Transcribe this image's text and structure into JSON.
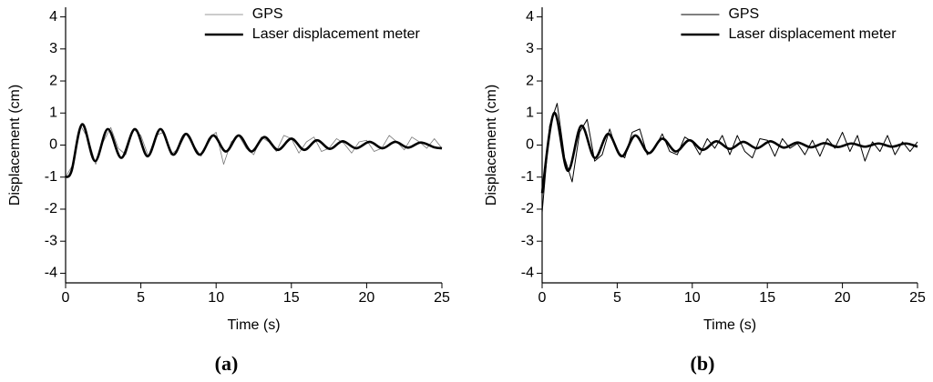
{
  "chart_data": [
    {
      "type": "line",
      "label": "(a)",
      "xlabel": "Time (s)",
      "ylabel": "Displacement (cm)",
      "xlim": [
        0,
        25
      ],
      "xticks": [
        0,
        5,
        10,
        15,
        20,
        25
      ],
      "ylim": [
        -4.3,
        4.3
      ],
      "yticks": [
        -4,
        -3,
        -2,
        -1,
        0,
        1,
        2,
        3,
        4
      ],
      "legend": "upper right",
      "series": [
        {
          "name": "GPS",
          "color": "#777777",
          "line_width": 0.8,
          "smooth": false,
          "x": [
            0,
            0.5,
            1,
            1.5,
            2,
            2.5,
            3,
            3.5,
            4,
            4.5,
            5,
            5.5,
            6,
            6.5,
            7,
            7.5,
            8,
            8.5,
            9,
            9.5,
            10,
            10.5,
            11,
            11.5,
            12,
            12.5,
            13,
            13.5,
            14,
            14.5,
            15,
            15.5,
            16,
            16.5,
            17,
            17.5,
            18,
            18.5,
            19,
            19.5,
            20,
            20.5,
            21,
            21.5,
            22,
            22.5,
            23,
            23.5,
            24,
            24.5,
            25
          ],
          "values": [
            -1,
            -0.6,
            0.6,
            0.2,
            -0.6,
            0.1,
            0.55,
            -0.1,
            -0.3,
            0.5,
            0.3,
            -0.35,
            0.3,
            0.4,
            -0.3,
            -0.1,
            0.35,
            0,
            -0.35,
            0.2,
            0.4,
            -0.6,
            0.1,
            0.3,
            -0.1,
            -0.3,
            0.25,
            0.1,
            -0.2,
            0.3,
            0.2,
            -0.25,
            0.1,
            0.25,
            -0.2,
            -0.1,
            0.2,
            0.05,
            -0.25,
            0.1,
            0.15,
            -0.2,
            -0.1,
            0.3,
            0.1,
            -0.15,
            0.25,
            0.1,
            -0.1,
            0.2,
            -0.1
          ]
        },
        {
          "name": "Laser displacement meter",
          "color": "#000000",
          "line_width": 2.6,
          "smooth": true,
          "x": [
            0,
            0.4,
            1.1,
            1.95,
            2.8,
            3.7,
            4.6,
            5.45,
            6.3,
            7.15,
            8,
            8.9,
            9.8,
            10.65,
            11.5,
            12.35,
            13.2,
            14.1,
            15,
            15.85,
            16.7,
            17.55,
            18.4,
            19.3,
            20.2,
            21.05,
            21.9,
            22.75,
            23.6,
            24.5,
            25
          ],
          "values": [
            -1,
            -0.8,
            0.65,
            -0.5,
            0.5,
            -0.4,
            0.5,
            -0.35,
            0.5,
            -0.3,
            0.35,
            -0.3,
            0.3,
            -0.2,
            0.3,
            -0.2,
            0.25,
            -0.15,
            0.2,
            -0.15,
            0.15,
            -0.12,
            0.12,
            -0.1,
            0.1,
            -0.1,
            0.1,
            -0.08,
            0.08,
            -0.07,
            -0.1
          ]
        }
      ]
    },
    {
      "type": "line",
      "label": "(b)",
      "xlabel": "Time (s)",
      "ylabel": "Displacement (cm)",
      "xlim": [
        0,
        25
      ],
      "xticks": [
        0,
        5,
        10,
        15,
        20,
        25
      ],
      "ylim": [
        -4.3,
        4.3
      ],
      "yticks": [
        -4,
        -3,
        -2,
        -1,
        0,
        1,
        2,
        3,
        4
      ],
      "legend": "upper right",
      "series": [
        {
          "name": "GPS",
          "color": "#000000",
          "line_width": 1,
          "smooth": false,
          "x": [
            0,
            0.5,
            1,
            1.5,
            2,
            2.5,
            3,
            3.5,
            4,
            4.5,
            5,
            5.5,
            6,
            6.5,
            7,
            7.5,
            8,
            8.5,
            9,
            9.5,
            10,
            10.5,
            11,
            11.5,
            12,
            12.5,
            13,
            13.5,
            14,
            14.5,
            15,
            15.5,
            16,
            16.5,
            17,
            17.5,
            18,
            18.5,
            19,
            19.5,
            20,
            20.5,
            21,
            21.5,
            22,
            22.5,
            23,
            23.5,
            24,
            24.5,
            25
          ],
          "values": [
            -2.1,
            0.6,
            1.3,
            -0.4,
            -1.15,
            0.4,
            0.8,
            -0.5,
            -0.3,
            0.5,
            -0.2,
            -0.4,
            0.4,
            0.5,
            -0.3,
            -0.1,
            0.35,
            -0.2,
            -0.3,
            0.25,
            0.1,
            -0.3,
            0.2,
            -0.1,
            0.3,
            -0.3,
            0.3,
            -0.2,
            -0.4,
            0.2,
            0.15,
            -0.35,
            0.2,
            -0.1,
            0.05,
            -0.3,
            0.15,
            -0.35,
            0.2,
            -0.1,
            0.4,
            -0.2,
            0.3,
            -0.5,
            0.1,
            -0.2,
            0.3,
            -0.3,
            0.1,
            -0.2,
            0.1
          ]
        },
        {
          "name": "Laser displacement meter",
          "color": "#000000",
          "line_width": 2.6,
          "smooth": true,
          "x": [
            0,
            0.8,
            1.7,
            2.6,
            3.5,
            4.4,
            5.3,
            6.2,
            7.1,
            8,
            8.9,
            9.8,
            10.7,
            11.6,
            12.5,
            13.4,
            14.3,
            15.2,
            16.1,
            17,
            17.9,
            18.8,
            19.7,
            20.6,
            21.5,
            22.4,
            23.3,
            24.2,
            25
          ],
          "values": [
            -1.5,
            1,
            -0.8,
            0.6,
            -0.4,
            0.35,
            -0.35,
            0.3,
            -0.25,
            0.2,
            -0.2,
            0.15,
            -0.15,
            0.12,
            -0.12,
            0.1,
            -0.1,
            0.12,
            -0.08,
            0.08,
            -0.07,
            0.06,
            -0.06,
            0.05,
            -0.05,
            0.05,
            -0.05,
            0.05,
            -0.05
          ]
        }
      ]
    }
  ]
}
